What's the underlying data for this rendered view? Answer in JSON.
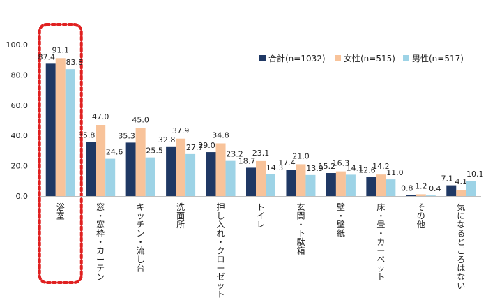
{
  "chart_data": {
    "type": "bar",
    "categories": [
      "浴室",
      "窓・窓枠・カーテン",
      "キッチン・流し台",
      "洗面所",
      "押し入れ・クローゼット",
      "トイレ",
      "玄関・下駄箱",
      "壁・壁紙",
      "床・畳・カーペット",
      "その他",
      "気になるところはない"
    ],
    "series": [
      {
        "name": "合計(n=1032)",
        "color": "#1f3864",
        "values": [
          87.4,
          35.8,
          35.3,
          32.8,
          29.0,
          18.7,
          17.4,
          15.2,
          12.6,
          0.8,
          7.1
        ]
      },
      {
        "name": "女性(n=515)",
        "color": "#f8c39a",
        "values": [
          91.1,
          47.0,
          45.0,
          37.9,
          34.8,
          23.1,
          21.0,
          16.3,
          14.2,
          1.2,
          4.1
        ]
      },
      {
        "name": "男性(n=517)",
        "color": "#9dd3e6",
        "values": [
          83.8,
          24.6,
          25.5,
          27.7,
          23.2,
          14.3,
          13.9,
          14.1,
          11.0,
          0.4,
          10.1
        ]
      }
    ],
    "ylim": [
      0,
      100
    ],
    "yticks": [
      "0.0",
      "20.0",
      "40.0",
      "60.0",
      "80.0",
      "100.0"
    ],
    "legend": "top-right",
    "grid": false,
    "highlight": {
      "category": "浴室",
      "style": "red dotted rounded box",
      "color": "#e02020"
    }
  }
}
